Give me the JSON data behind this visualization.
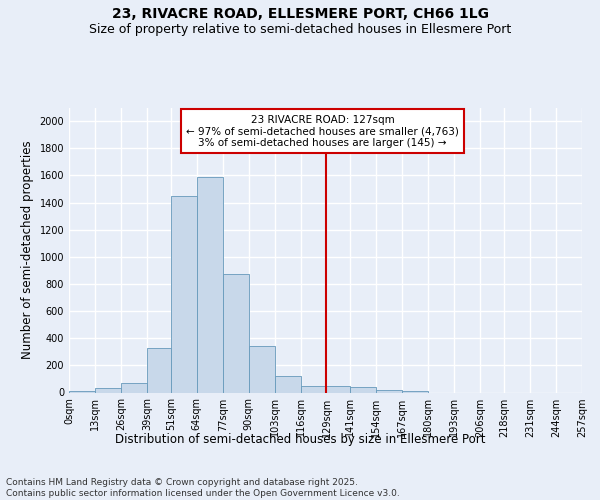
{
  "title_line1": "23, RIVACRE ROAD, ELLESMERE PORT, CH66 1LG",
  "title_line2": "Size of property relative to semi-detached houses in Ellesmere Port",
  "xlabel": "Distribution of semi-detached houses by size in Ellesmere Port",
  "ylabel": "Number of semi-detached properties",
  "footer": "Contains HM Land Registry data © Crown copyright and database right 2025.\nContains public sector information licensed under the Open Government Licence v3.0.",
  "bin_labels": [
    "0sqm",
    "13sqm",
    "26sqm",
    "39sqm",
    "51sqm",
    "64sqm",
    "77sqm",
    "90sqm",
    "103sqm",
    "116sqm",
    "129sqm",
    "141sqm",
    "154sqm",
    "167sqm",
    "180sqm",
    "193sqm",
    "206sqm",
    "218sqm",
    "231sqm",
    "244sqm",
    "257sqm"
  ],
  "bin_edges": [
    0,
    13,
    26,
    39,
    51,
    64,
    77,
    90,
    103,
    116,
    129,
    141,
    154,
    167,
    180,
    193,
    206,
    218,
    231,
    244,
    257
  ],
  "bar_heights": [
    10,
    30,
    70,
    325,
    1450,
    1590,
    870,
    340,
    125,
    50,
    45,
    40,
    20,
    10,
    0,
    0,
    0,
    0,
    0,
    0
  ],
  "bar_color": "#c8d8ea",
  "bar_edge_color": "#6699bb",
  "annotation_text": "23 RIVACRE ROAD: 127sqm\n← 97% of semi-detached houses are smaller (4,763)\n3% of semi-detached houses are larger (145) →",
  "vline_x": 129,
  "vline_color": "#cc0000",
  "annotation_box_color": "#cc0000",
  "ylim": [
    0,
    2100
  ],
  "yticks": [
    0,
    200,
    400,
    600,
    800,
    1000,
    1200,
    1400,
    1600,
    1800,
    2000
  ],
  "background_color": "#e8eef8",
  "plot_bg_color": "#e8eef8",
  "grid_color": "#ffffff",
  "title_fontsize": 10,
  "subtitle_fontsize": 9,
  "axis_label_fontsize": 8.5,
  "tick_fontsize": 7,
  "footer_fontsize": 6.5
}
